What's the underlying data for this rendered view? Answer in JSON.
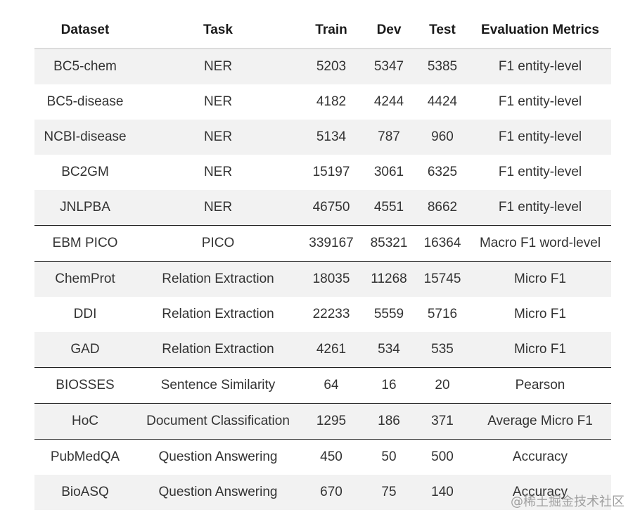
{
  "table": {
    "headers": [
      "Dataset",
      "Task",
      "Train",
      "Dev",
      "Test",
      "Evaluation Metrics"
    ],
    "rows": [
      {
        "dataset": "BC5-chem",
        "task": "NER",
        "train": "5203",
        "dev": "5347",
        "test": "5385",
        "metric": "F1 entity-level"
      },
      {
        "dataset": "BC5-disease",
        "task": "NER",
        "train": "4182",
        "dev": "4244",
        "test": "4424",
        "metric": "F1 entity-level"
      },
      {
        "dataset": "NCBI-disease",
        "task": "NER",
        "train": "5134",
        "dev": "787",
        "test": "960",
        "metric": "F1 entity-level"
      },
      {
        "dataset": "BC2GM",
        "task": "NER",
        "train": "15197",
        "dev": "3061",
        "test": "6325",
        "metric": "F1 entity-level"
      },
      {
        "dataset": "JNLPBA",
        "task": "NER",
        "train": "46750",
        "dev": "4551",
        "test": "8662",
        "metric": "F1 entity-level"
      },
      {
        "dataset": "EBM PICO",
        "task": "PICO",
        "train": "339167",
        "dev": "85321",
        "test": "16364",
        "metric": "Macro F1 word-level"
      },
      {
        "dataset": "ChemProt",
        "task": "Relation Extraction",
        "train": "18035",
        "dev": "11268",
        "test": "15745",
        "metric": "Micro F1"
      },
      {
        "dataset": "DDI",
        "task": "Relation Extraction",
        "train": "22233",
        "dev": "5559",
        "test": "5716",
        "metric": "Micro F1"
      },
      {
        "dataset": "GAD",
        "task": "Relation Extraction",
        "train": "4261",
        "dev": "534",
        "test": "535",
        "metric": "Micro F1"
      },
      {
        "dataset": "BIOSSES",
        "task": "Sentence Similarity",
        "train": "64",
        "dev": "16",
        "test": "20",
        "metric": "Pearson"
      },
      {
        "dataset": "HoC",
        "task": "Document Classification",
        "train": "1295",
        "dev": "186",
        "test": "371",
        "metric": "Average Micro F1"
      },
      {
        "dataset": "PubMedQA",
        "task": "Question Answering",
        "train": "450",
        "dev": "50",
        "test": "500",
        "metric": "Accuracy"
      },
      {
        "dataset": "BioASQ",
        "task": "Question Answering",
        "train": "670",
        "dev": "75",
        "test": "140",
        "metric": "Accuracy"
      }
    ]
  },
  "watermark": "@稀土掘金技术社区"
}
